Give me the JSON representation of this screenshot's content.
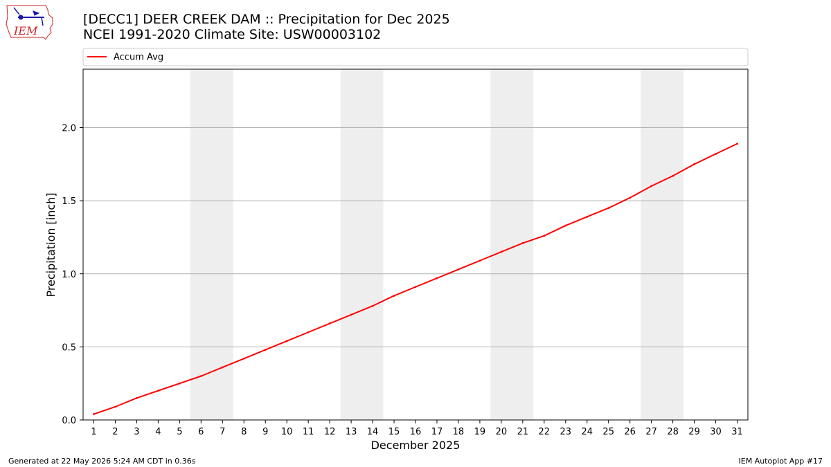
{
  "header": {
    "title_line1": "[DECC1] DEER CREEK DAM :: Precipitation for Dec 2025",
    "title_line2": "NCEI 1991-2020 Climate Site: USW00003102",
    "logo_text": "IEM"
  },
  "footer": {
    "left": "Generated at 22 May 2026 5:24 AM CDT in 0.36s",
    "right": "IEM Autoplot App #17"
  },
  "colors": {
    "line": "#ff0000",
    "weekend": "#eeeeee",
    "grid": "#b0b0b0",
    "logo_red": "#cc2222",
    "logo_blue": "#1a1aa6"
  },
  "chart_data": {
    "type": "line",
    "xlabel": "December 2025",
    "ylabel": "Precipitation [inch]",
    "x": [
      1,
      2,
      3,
      4,
      5,
      6,
      7,
      8,
      9,
      10,
      11,
      12,
      13,
      14,
      15,
      16,
      17,
      18,
      19,
      20,
      21,
      22,
      23,
      24,
      25,
      26,
      27,
      28,
      29,
      30,
      31
    ],
    "series": [
      {
        "name": "Accum Avg",
        "values": [
          0.04,
          0.09,
          0.15,
          0.2,
          0.25,
          0.3,
          0.36,
          0.42,
          0.48,
          0.54,
          0.6,
          0.66,
          0.72,
          0.78,
          0.85,
          0.91,
          0.97,
          1.03,
          1.09,
          1.15,
          1.21,
          1.26,
          1.33,
          1.39,
          1.45,
          1.52,
          1.6,
          1.67,
          1.75,
          1.82,
          1.89
        ]
      }
    ],
    "weekend_spans": [
      [
        6,
        7
      ],
      [
        13,
        14
      ],
      [
        20,
        21
      ],
      [
        27,
        28
      ]
    ],
    "xlim": [
      0.5,
      31.5
    ],
    "ylim": [
      0,
      2.4
    ],
    "yticks": [
      0.0,
      0.5,
      1.0,
      1.5,
      2.0
    ],
    "ytick_labels": [
      "0.0",
      "0.5",
      "1.0",
      "1.5",
      "2.0"
    ],
    "xtick_labels": [
      "1",
      "2",
      "3",
      "4",
      "5",
      "6",
      "7",
      "8",
      "9",
      "10",
      "11",
      "12",
      "13",
      "14",
      "15",
      "16",
      "17",
      "18",
      "19",
      "20",
      "21",
      "22",
      "23",
      "24",
      "25",
      "26",
      "27",
      "28",
      "29",
      "30",
      "31"
    ],
    "grid": "horizontal",
    "legend_position": "top"
  }
}
